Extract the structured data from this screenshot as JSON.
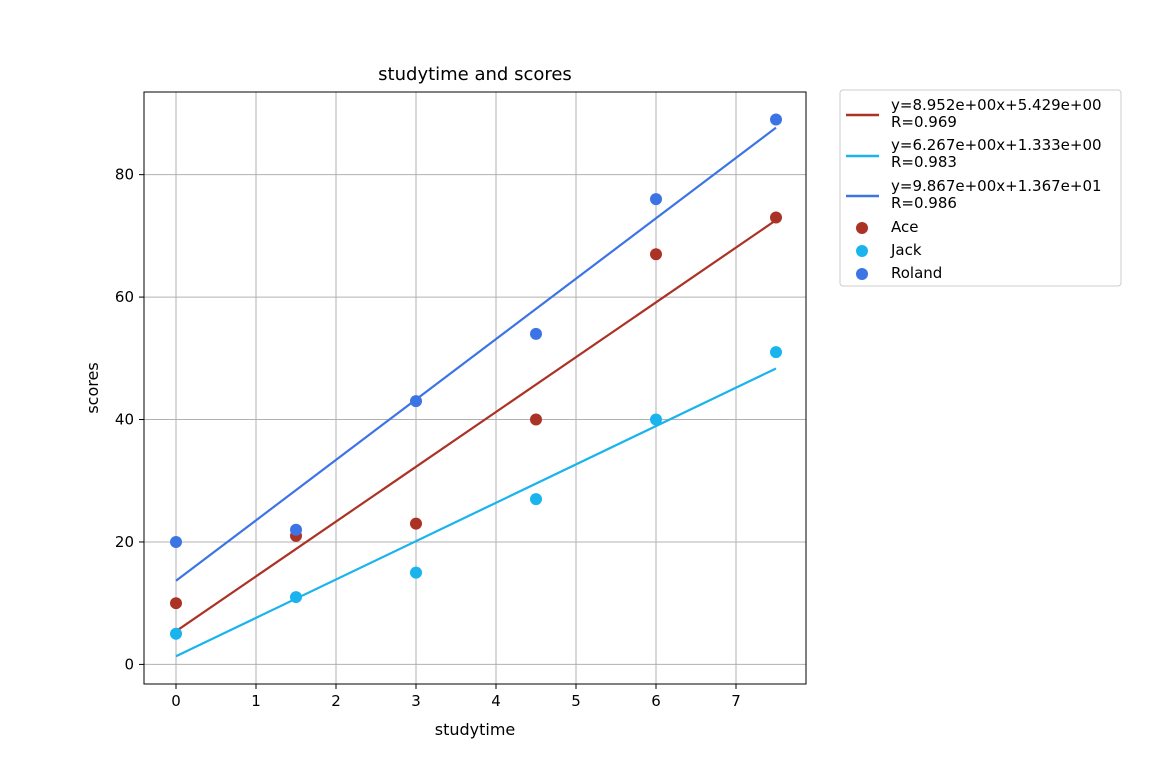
{
  "chart_data": {
    "type": "scatter",
    "title": "studytime and scores",
    "xlabel": "studytime",
    "ylabel": "scores",
    "xlim": [
      -0.4,
      7.875
    ],
    "ylim": [
      -3.2,
      93.5
    ],
    "xticks": [
      0,
      1,
      2,
      3,
      4,
      5,
      6,
      7
    ],
    "yticks": [
      0,
      20,
      40,
      60,
      80
    ],
    "grid": true,
    "legend_position": "outside-top-right",
    "x": [
      0,
      1.5,
      3,
      4.5,
      6,
      7.5
    ],
    "series": [
      {
        "name": "Ace",
        "color": "#ab3326",
        "values": [
          10,
          21,
          23,
          40,
          67,
          73
        ],
        "fit": {
          "slope": 8.952,
          "intercept": 5.429,
          "label": "y=8.952e+00x+5.429e+00",
          "r_label": "R=0.969"
        }
      },
      {
        "name": "Jack",
        "color": "#19b3ee",
        "values": [
          5,
          11,
          15,
          27,
          40,
          51
        ],
        "fit": {
          "slope": 6.267,
          "intercept": 1.333,
          "label": "y=6.267e+00x+1.333e+00",
          "r_label": "R=0.983"
        }
      },
      {
        "name": "Roland",
        "color": "#3c74e5",
        "values": [
          20,
          22,
          43,
          54,
          76,
          89
        ],
        "fit": {
          "slope": 9.867,
          "intercept": 13.67,
          "label": "y=9.867e+00x+1.367e+01",
          "r_label": "R=0.986"
        }
      }
    ]
  }
}
